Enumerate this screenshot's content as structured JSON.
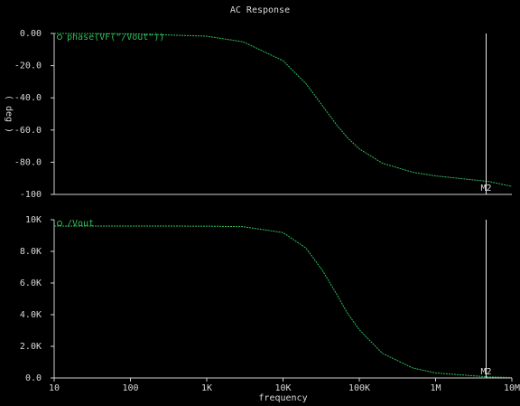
{
  "title": "AC Response",
  "chart_data": [
    {
      "type": "line",
      "ylabel": "( deg )",
      "xscale": "log",
      "xlim": [
        10,
        10000000
      ],
      "ylim": [
        -100,
        0
      ],
      "yticks": [
        {
          "value": 0,
          "label": "0.00"
        },
        {
          "value": -20,
          "label": "-20.0"
        },
        {
          "value": -40,
          "label": "-40.0"
        },
        {
          "value": -60,
          "label": "-60.0"
        },
        {
          "value": -80,
          "label": "-80.0"
        },
        -100
      ],
      "x": [
        10,
        100,
        1000,
        3000,
        10000,
        20000,
        33000,
        50000,
        70000,
        100000,
        200000,
        500000,
        1000000,
        5000000,
        10000000
      ],
      "series": [
        {
          "name": "phase(VF(\"/Vout\"))",
          "color": "#2fbf5a",
          "values": [
            0,
            -0.2,
            -1.7,
            -5.2,
            -16.9,
            -31.2,
            -45,
            -56.6,
            -64.8,
            -71.7,
            -80.6,
            -86.2,
            -88.5,
            -92,
            -95
          ]
        }
      ],
      "marker": {
        "label": "M2",
        "x": 4600000
      }
    },
    {
      "type": "line",
      "xlabel": "frequency",
      "xscale": "log",
      "xlim": [
        10,
        10000000
      ],
      "ylim": [
        0,
        10000
      ],
      "xticks": [
        10,
        100,
        {
          "value": 1000,
          "label": "1K"
        },
        {
          "value": 10000,
          "label": "10K"
        },
        {
          "value": 100000,
          "label": "100K"
        },
        {
          "value": 1000000,
          "label": "1M"
        },
        {
          "value": 10000000,
          "label": "10M"
        }
      ],
      "yticks": [
        {
          "value": 0,
          "label": "0.0"
        },
        {
          "value": 2000,
          "label": "2.0K"
        },
        {
          "value": 4000,
          "label": "4.0K"
        },
        {
          "value": 6000,
          "label": "6.0K"
        },
        {
          "value": 8000,
          "label": "8.0K"
        },
        {
          "value": 10000,
          "label": "10K"
        }
      ],
      "x": [
        10,
        100,
        1000,
        3000,
        10000,
        20000,
        33000,
        50000,
        70000,
        100000,
        200000,
        500000,
        1000000,
        5000000,
        10000000
      ],
      "series": [
        {
          "name": "/Vout",
          "color": "#2fbf5a",
          "values": [
            9600,
            9600,
            9595,
            9560,
            9187,
            8210,
            6788,
            5329,
            4090,
            3046,
            1563,
            632,
            317,
            63,
            32
          ]
        }
      ],
      "marker": {
        "label": "M2",
        "x": 4600000
      }
    }
  ]
}
